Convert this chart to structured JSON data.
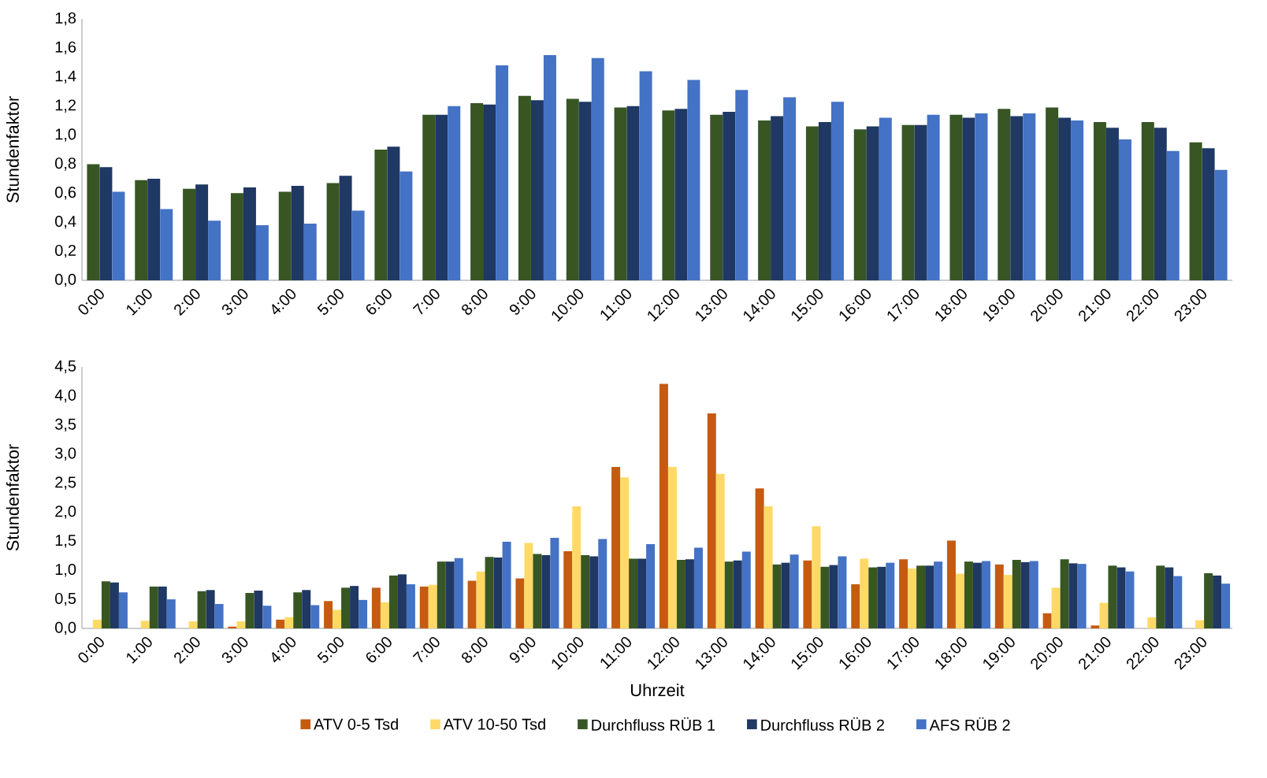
{
  "chart_data": [
    {
      "type": "bar",
      "ylabel": "Stundenfaktor",
      "categories": [
        "0:00",
        "1:00",
        "2:00",
        "3:00",
        "4:00",
        "5:00",
        "6:00",
        "7:00",
        "8:00",
        "9:00",
        "10:00",
        "11:00",
        "12:00",
        "13:00",
        "14:00",
        "15:00",
        "16:00",
        "17:00",
        "18:00",
        "19:00",
        "20:00",
        "21:00",
        "22:00",
        "23:00"
      ],
      "series": [
        {
          "color": "#375623",
          "values": [
            0.8,
            0.69,
            0.63,
            0.6,
            0.61,
            0.67,
            0.9,
            1.14,
            1.22,
            1.27,
            1.25,
            1.19,
            1.17,
            1.14,
            1.1,
            1.06,
            1.04,
            1.07,
            1.14,
            1.18,
            1.19,
            1.09,
            1.09,
            0.95
          ]
        },
        {
          "color": "#1f3864",
          "values": [
            0.78,
            0.7,
            0.66,
            0.64,
            0.65,
            0.72,
            0.92,
            1.14,
            1.21,
            1.24,
            1.23,
            1.2,
            1.18,
            1.16,
            1.13,
            1.09,
            1.06,
            1.07,
            1.12,
            1.13,
            1.12,
            1.05,
            1.05,
            0.91
          ]
        },
        {
          "color": "#4472c4",
          "values": [
            0.61,
            0.49,
            0.41,
            0.38,
            0.39,
            0.48,
            0.75,
            1.2,
            1.48,
            1.55,
            1.53,
            1.44,
            1.38,
            1.31,
            1.26,
            1.23,
            1.12,
            1.14,
            1.15,
            1.15,
            1.1,
            0.97,
            0.89,
            0.76
          ]
        }
      ],
      "ylim": [
        0,
        1.8
      ],
      "yticks": [
        {
          "value": 0,
          "label": "0,0"
        },
        {
          "value": 0.2,
          "label": "0,2"
        },
        {
          "value": 0.4,
          "label": "0,4"
        },
        {
          "value": 0.6,
          "label": "0,6"
        },
        {
          "value": 0.8,
          "label": "0,8"
        },
        {
          "value": 1.0,
          "label": "1,0"
        },
        {
          "value": 1.2,
          "label": "1,2"
        },
        {
          "value": 1.4,
          "label": "1,4"
        },
        {
          "value": 1.6,
          "label": "1,6"
        },
        {
          "value": 1.8,
          "label": "1,8"
        }
      ],
      "grid": false,
      "legend": false
    },
    {
      "type": "bar",
      "ylabel": "Stundenfaktor",
      "xlabel": "Uhrzeit",
      "categories": [
        "0:00",
        "1:00",
        "2:00",
        "3:00",
        "4:00",
        "5:00",
        "6:00",
        "7:00",
        "8:00",
        "9:00",
        "10:00",
        "11:00",
        "12:00",
        "13:00",
        "14:00",
        "15:00",
        "16:00",
        "17:00",
        "18:00",
        "19:00",
        "20:00",
        "21:00",
        "22:00",
        "23:00"
      ],
      "series": [
        {
          "name": "ATV 0-5 Tsd",
          "color": "#c55a11",
          "values": [
            0,
            0,
            0,
            0.03,
            0.15,
            0.47,
            0.7,
            0.72,
            0.82,
            0.86,
            1.33,
            2.78,
            4.21,
            3.7,
            2.41,
            1.17,
            0.76,
            1.19,
            1.51,
            1.1,
            0.26,
            0.05,
            0,
            0
          ]
        },
        {
          "name": "ATV 10-50 Tsd",
          "color": "#ffd966",
          "values": [
            0.15,
            0.13,
            0.12,
            0.12,
            0.19,
            0.32,
            0.45,
            0.75,
            0.98,
            1.47,
            2.1,
            2.6,
            2.78,
            2.66,
            2.1,
            1.76,
            1.2,
            1.03,
            0.94,
            0.92,
            0.7,
            0.44,
            0.19,
            0.14
          ]
        },
        {
          "name": "Durchfluss RÜB 1",
          "color": "#375623",
          "values": [
            0.81,
            0.72,
            0.64,
            0.61,
            0.62,
            0.7,
            0.91,
            1.15,
            1.23,
            1.28,
            1.26,
            1.2,
            1.18,
            1.15,
            1.1,
            1.06,
            1.05,
            1.08,
            1.15,
            1.18,
            1.19,
            1.08,
            1.08,
            0.95
          ]
        },
        {
          "name": "Durchfluss RÜB 2",
          "color": "#1f3864",
          "values": [
            0.79,
            0.72,
            0.66,
            0.65,
            0.66,
            0.73,
            0.93,
            1.15,
            1.22,
            1.26,
            1.24,
            1.2,
            1.19,
            1.17,
            1.13,
            1.09,
            1.06,
            1.08,
            1.13,
            1.14,
            1.12,
            1.05,
            1.05,
            0.91
          ]
        },
        {
          "name": "AFS RÜB 2",
          "color": "#4472c4",
          "values": [
            0.62,
            0.5,
            0.42,
            0.39,
            0.4,
            0.49,
            0.76,
            1.21,
            1.49,
            1.56,
            1.54,
            1.45,
            1.39,
            1.32,
            1.27,
            1.24,
            1.13,
            1.15,
            1.16,
            1.16,
            1.11,
            0.98,
            0.9,
            0.77
          ]
        }
      ],
      "ylim": [
        0,
        4.5
      ],
      "yticks": [
        {
          "value": 0,
          "label": "0,0"
        },
        {
          "value": 0.5,
          "label": "0,5"
        },
        {
          "value": 1.0,
          "label": "1,0"
        },
        {
          "value": 1.5,
          "label": "1,5"
        },
        {
          "value": 2.0,
          "label": "2,0"
        },
        {
          "value": 2.5,
          "label": "2,5"
        },
        {
          "value": 3.0,
          "label": "3,0"
        },
        {
          "value": 3.5,
          "label": "3,5"
        },
        {
          "value": 4.0,
          "label": "4,0"
        },
        {
          "value": 4.5,
          "label": "4,5"
        }
      ],
      "grid": false,
      "legend": "bottom"
    }
  ]
}
